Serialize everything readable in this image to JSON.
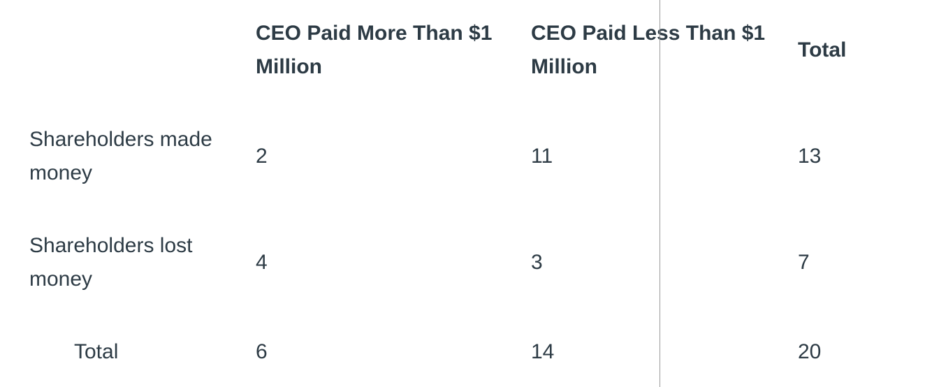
{
  "table": {
    "headers": {
      "col1_line1": "CEO Paid More Than $1",
      "col1_line2": "Million",
      "col2_line1": "CEO Paid Less Than $1",
      "col2_line2": "Million",
      "col3": "Total"
    },
    "rows": [
      {
        "label_line1": "Shareholders made",
        "label_line2": "money",
        "values": [
          "2",
          "11",
          "13"
        ]
      },
      {
        "label_line1": "Shareholders lost",
        "label_line2": "money",
        "values": [
          "4",
          "3",
          "7"
        ]
      },
      {
        "label": "Total",
        "values": [
          "6",
          "14",
          "20"
        ]
      }
    ]
  }
}
